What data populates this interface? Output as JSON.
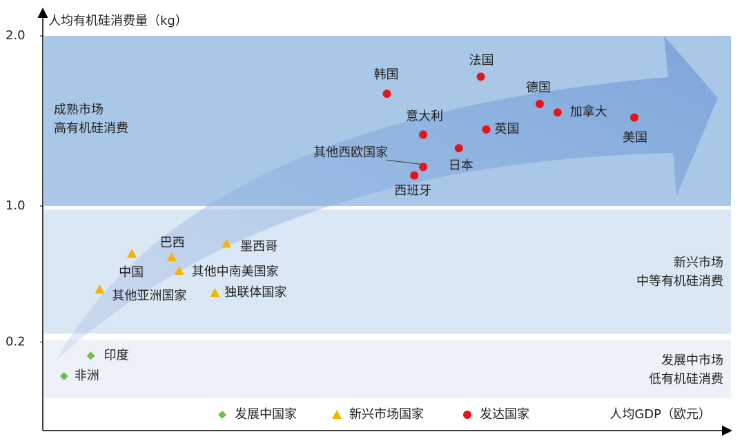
{
  "chart_data": {
    "type": "scatter",
    "y_label": "人均有机硅消费量（kg）",
    "x_label": "人均GDP（欧元）",
    "xlim": [
      0,
      100
    ],
    "ylim": [
      -0.32,
      2.13
    ],
    "yticks": [
      {
        "value": 2.0,
        "label": "2.0"
      },
      {
        "value": 1.0,
        "label": "1.0"
      },
      0.2
    ],
    "bands": [
      {
        "lines": [
          "成熟市场",
          "高有机硅消费"
        ],
        "range": [
          1.0,
          2.0
        ],
        "color": "#a9c8e8"
      },
      {
        "lines": [
          "新兴市场",
          "中等有机硅消费"
        ],
        "range": [
          0.25,
          0.98
        ],
        "color": "#dae7f4"
      },
      {
        "lines": [
          "发展中市场",
          "低有机硅消费"
        ],
        "range": [
          -0.13,
          0.21
        ],
        "color": "#edf2f9"
      }
    ],
    "series": [
      {
        "name": "发展中国家",
        "color": "#6fbf4a",
        "marker": "diamond",
        "labels": [
          "非洲",
          "印度"
        ],
        "x": [
          3.1,
          7.0
        ],
        "values": [
          0.0,
          0.12
        ]
      },
      {
        "name": "新兴市场国家",
        "color": "#f5b400",
        "marker": "triangle",
        "labels": [
          "中国",
          "巴西",
          "墨西哥",
          "其他中南美国家",
          "其他亚洲国家",
          "独联体国家"
        ],
        "x": [
          13.0,
          18.8,
          26.8,
          19.9,
          8.3,
          25.1
        ],
        "values": [
          0.72,
          0.7,
          0.78,
          0.62,
          0.51,
          0.49
        ]
      },
      {
        "name": "发达国家",
        "color": "#e8141c",
        "marker": "circle",
        "labels": [
          "韩国",
          "法国",
          "德国",
          "加拿大",
          "美国",
          "意大利",
          "英国",
          "日本",
          "其他西欧国家",
          "西班牙"
        ],
        "x": [
          50.2,
          63.9,
          72.5,
          75.1,
          86.3,
          55.5,
          64.7,
          60.7,
          55.5,
          54.2
        ],
        "values": [
          1.66,
          1.76,
          1.6,
          1.55,
          1.52,
          1.42,
          1.45,
          1.34,
          1.23,
          1.18
        ]
      }
    ]
  }
}
